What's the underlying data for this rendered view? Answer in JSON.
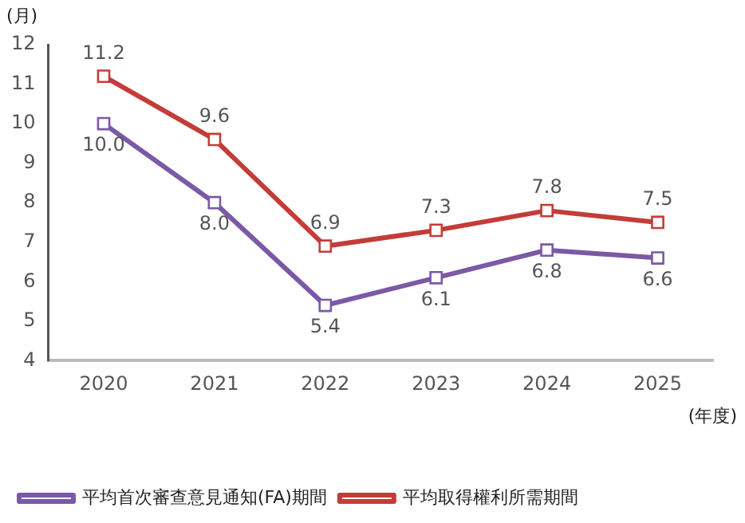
{
  "chart_data": {
    "type": "line",
    "xlabel": "(年度)",
    "ylabel": "(月)",
    "categories": [
      "2020",
      "2021",
      "2022",
      "2023",
      "2024",
      "2025"
    ],
    "series": [
      {
        "name": "平均首次審查意見通知(FA)期間",
        "color": "#7b59a6",
        "values": [
          10.0,
          8.0,
          5.4,
          6.1,
          6.8,
          6.6
        ],
        "value_labels": [
          "10.0",
          "8.0",
          "5.4",
          "6.1",
          "6.8",
          "6.6"
        ]
      },
      {
        "name": "平均取得權利所需期間",
        "color": "#c43c39",
        "values": [
          11.2,
          9.6,
          6.9,
          7.3,
          7.8,
          7.5
        ],
        "value_labels": [
          "11.2",
          "9.6",
          "6.9",
          "7.3",
          "7.8",
          "7.5"
        ]
      }
    ],
    "ylim": [
      4,
      12
    ],
    "yticks": [
      4,
      5,
      6,
      7,
      8,
      9,
      10,
      11,
      12
    ],
    "grid": false,
    "legend": "bottom left",
    "marker": "square",
    "line_style": "solid"
  }
}
